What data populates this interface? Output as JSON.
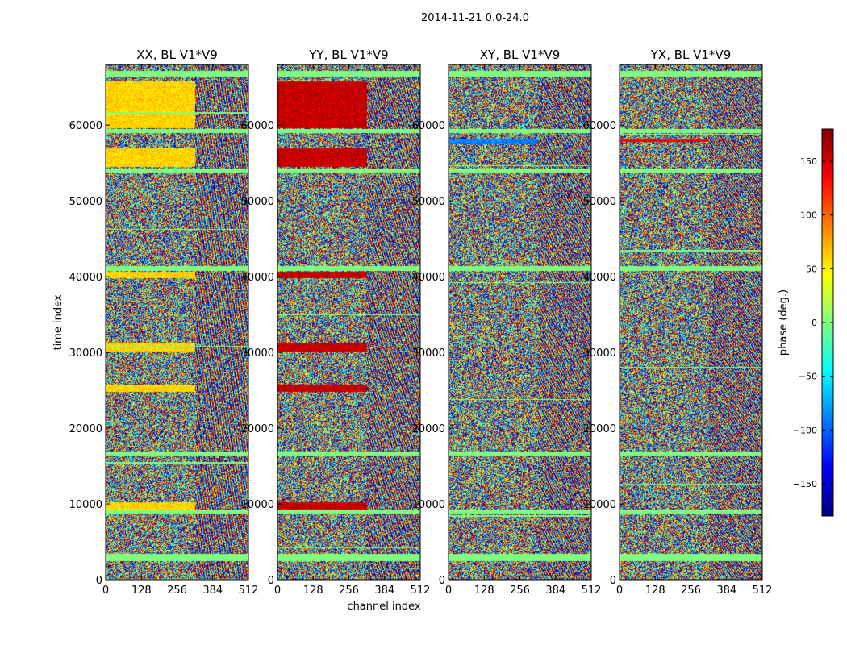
{
  "chart_data": {
    "type": "heatmap",
    "suptitle": "2014-11-21 0.0-24.0",
    "panels": [
      {
        "title": "XX, BL V1*V9",
        "pol": "XX"
      },
      {
        "title": "YY, BL V1*V9",
        "pol": "YY"
      },
      {
        "title": "XY, BL V1*V9",
        "pol": "XY"
      },
      {
        "title": "YX, BL V1*V9",
        "pol": "YX"
      }
    ],
    "xlabel": "channel index",
    "ylabel": "time index",
    "xlim": [
      0,
      512
    ],
    "ylim": [
      0,
      68000
    ],
    "xticks": [
      0,
      128,
      256,
      384,
      512
    ],
    "xtick_labels": [
      "0",
      "128",
      "256",
      "384",
      "512"
    ],
    "yticks": [
      0,
      10000,
      20000,
      30000,
      40000,
      50000,
      60000
    ],
    "ytick_labels": [
      "0",
      "10000",
      "20000",
      "30000",
      "40000",
      "50000",
      "60000"
    ],
    "colorbar": {
      "label": "phase (deg.)",
      "range": [
        -180,
        180
      ],
      "ticks": [
        -150,
        -100,
        -50,
        0,
        50,
        100,
        150
      ],
      "tick_labels": [
        "−150",
        "−100",
        "−50",
        "0",
        "50",
        "100",
        "150"
      ],
      "colormap": "jet"
    },
    "features": {
      "coherent_channel_limit": 320,
      "flagged_time_bands": [
        [
          2500,
          3500
        ],
        [
          8800,
          9300
        ],
        [
          16400,
          17000
        ],
        [
          40800,
          41500
        ],
        [
          53800,
          54300
        ],
        [
          59000,
          59500
        ],
        [
          66500,
          67200
        ]
      ],
      "coherent_time_bands": {
        "XX": [
          [
            9200,
            10300
          ],
          [
            24800,
            25800
          ],
          [
            30200,
            31300
          ],
          [
            39800,
            40700
          ],
          [
            54500,
            57000
          ],
          [
            59600,
            65800
          ]
        ],
        "YY": [
          [
            9200,
            10300
          ],
          [
            24800,
            25800
          ],
          [
            30200,
            31300
          ],
          [
            39800,
            40700
          ],
          [
            54500,
            57000
          ],
          [
            59600,
            65800
          ]
        ],
        "XY": [
          [
            57600,
            58300
          ]
        ],
        "YX": [
          [
            57800,
            58200
          ]
        ]
      },
      "coherent_phase_deg": {
        "XX": 60,
        "YY": 155,
        "XY": -90,
        "YX": 140
      }
    }
  }
}
